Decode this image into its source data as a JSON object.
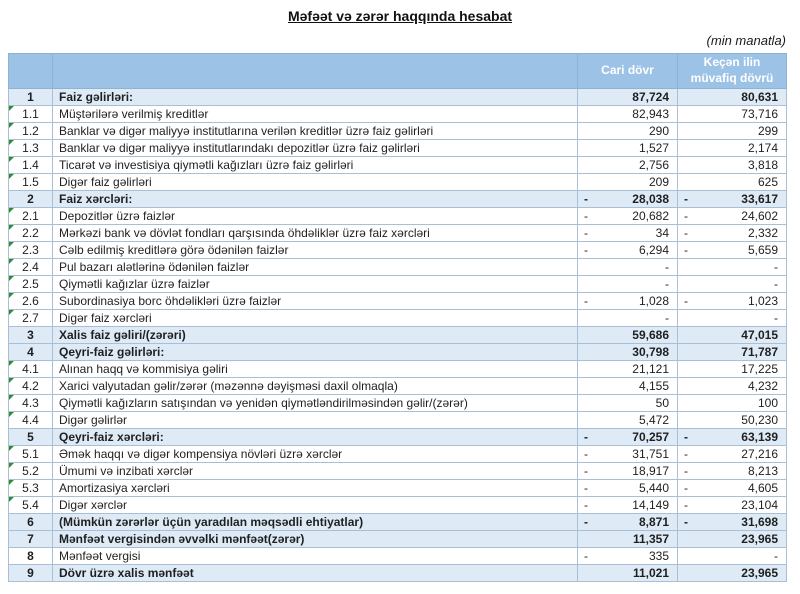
{
  "page": {
    "title": "Məfəət və zərər haqqında hesabat",
    "unit_note": "(min manatla)"
  },
  "colors": {
    "header_bg": "#9CC2E5",
    "header_text": "#FFFFFF",
    "section_row_bg": "#DEEBF7",
    "cell_border": "#AABFD4",
    "comment_marker_green": "#2F8F2F"
  },
  "table": {
    "header": {
      "num": "",
      "desc": "",
      "current": "Cari dövr",
      "previous": "Keçən ilin müvafiq dövrü"
    },
    "rows": [
      {
        "num": "1",
        "label": "Faiz gəlirləri:",
        "cs": "",
        "cur": "87,724",
        "ps": "",
        "prev": "80,631",
        "section": true,
        "marker": false
      },
      {
        "num": "1.1",
        "label": "Müştərilərə verilmiş kreditlər",
        "cs": "",
        "cur": "82,943",
        "ps": "",
        "prev": "73,716",
        "section": false,
        "marker": true
      },
      {
        "num": "1.2",
        "label": "Banklar və digər maliyyə institutlarına verilən kreditlər üzrə faiz gəlirləri",
        "cs": "",
        "cur": "290",
        "ps": "",
        "prev": "299",
        "section": false,
        "marker": true
      },
      {
        "num": "1.3",
        "label": "Banklar və digər maliyyə institutlarındakı depozitlər üzrə faiz gəlirləri",
        "cs": "",
        "cur": "1,527",
        "ps": "",
        "prev": "2,174",
        "section": false,
        "marker": true
      },
      {
        "num": "1.4",
        "label": "Ticarət və investisiya qiymətli kağızları üzrə faiz gəlirləri",
        "cs": "",
        "cur": "2,756",
        "ps": "",
        "prev": "3,818",
        "section": false,
        "marker": true
      },
      {
        "num": "1.5",
        "label": "Digər faiz gəlirləri",
        "cs": "",
        "cur": "209",
        "ps": "",
        "prev": "625",
        "section": false,
        "marker": true
      },
      {
        "num": "2",
        "label": "Faiz xərcləri:",
        "cs": "-",
        "cur": "28,038",
        "ps": "-",
        "prev": "33,617",
        "section": true,
        "marker": false
      },
      {
        "num": "2.1",
        "label": "Depozitlər üzrə faizlər",
        "cs": "-",
        "cur": "20,682",
        "ps": "-",
        "prev": "24,602",
        "section": false,
        "marker": true
      },
      {
        "num": "2.2",
        "label": "Mərkəzi bank və dövlət fondları qarşısında öhdəliklər üzrə faiz xərcləri",
        "cs": "-",
        "cur": "34",
        "ps": "-",
        "prev": "2,332",
        "section": false,
        "marker": true
      },
      {
        "num": "2.3",
        "label": "Cəlb edilmiş kreditlərə görə ödənilən faizlər",
        "cs": "-",
        "cur": "6,294",
        "ps": "-",
        "prev": "5,659",
        "section": false,
        "marker": true
      },
      {
        "num": "2.4",
        "label": "Pul bazarı alətlərinə ödənilən faizlər",
        "cs": "",
        "cur": "-",
        "ps": "",
        "prev": "-",
        "section": false,
        "marker": true
      },
      {
        "num": "2.5",
        "label": "Qiymətli kağızlar üzrə faizlər",
        "cs": "",
        "cur": "-",
        "ps": "",
        "prev": "-",
        "section": false,
        "marker": true
      },
      {
        "num": "2.6",
        "label": "Subordinasiya borc öhdəlikləri üzrə faizlər",
        "cs": "-",
        "cur": "1,028",
        "ps": "-",
        "prev": "1,023",
        "section": false,
        "marker": true
      },
      {
        "num": "2.7",
        "label": "Digər faiz xərcləri",
        "cs": "",
        "cur": "-",
        "ps": "",
        "prev": "-",
        "section": false,
        "marker": true
      },
      {
        "num": "3",
        "label": "Xalis faiz gəliri/(zərəri)",
        "cs": "",
        "cur": "59,686",
        "ps": "",
        "prev": "47,015",
        "section": true,
        "marker": false
      },
      {
        "num": "4",
        "label": "Qeyri-faiz gəlirləri:",
        "cs": "",
        "cur": "30,798",
        "ps": "",
        "prev": "71,787",
        "section": true,
        "marker": false
      },
      {
        "num": "4.1",
        "label": "Alınan haqq və kommisiya gəliri",
        "cs": "",
        "cur": "21,121",
        "ps": "",
        "prev": "17,225",
        "section": false,
        "marker": true
      },
      {
        "num": "4.2",
        "label": "Xarici valyutadan gəlir/zərər (məzənnə dəyişməsi daxil olmaqla)",
        "cs": "",
        "cur": "4,155",
        "ps": "",
        "prev": "4,232",
        "section": false,
        "marker": true
      },
      {
        "num": "4.3",
        "label": "Qiymətli kağızların satışından və yenidən qiymətləndirilməsindən gəlir/(zərər)",
        "cs": "",
        "cur": "50",
        "ps": "",
        "prev": "100",
        "section": false,
        "marker": true
      },
      {
        "num": "4.4",
        "label": "Digər gəlirlər",
        "cs": "",
        "cur": "5,472",
        "ps": "",
        "prev": "50,230",
        "section": false,
        "marker": true
      },
      {
        "num": "5",
        "label": "Qeyri-faiz xərcləri:",
        "cs": "-",
        "cur": "70,257",
        "ps": "-",
        "prev": "63,139",
        "section": true,
        "marker": false
      },
      {
        "num": "5.1",
        "label": "Əmək haqqı və digər kompensiya növləri üzrə xərclər",
        "cs": "-",
        "cur": "31,751",
        "ps": "-",
        "prev": "27,216",
        "section": false,
        "marker": true
      },
      {
        "num": "5.2",
        "label": "Ümumi və inzibati xərclər",
        "cs": "-",
        "cur": "18,917",
        "ps": "-",
        "prev": "8,213",
        "section": false,
        "marker": true
      },
      {
        "num": "5.3",
        "label": "Amortizasiya xərcləri",
        "cs": "-",
        "cur": "5,440",
        "ps": "-",
        "prev": "4,605",
        "section": false,
        "marker": true
      },
      {
        "num": "5.4",
        "label": "Digər xərclər",
        "cs": "-",
        "cur": "14,149",
        "ps": "-",
        "prev": "23,104",
        "section": false,
        "marker": true
      },
      {
        "num": "6",
        "label": "(Mümkün zərərlər üçün yaradılan məqsədli ehtiyatlar)",
        "cs": "-",
        "cur": "8,871",
        "ps": "-",
        "prev": "31,698",
        "section": true,
        "marker": false
      },
      {
        "num": "7",
        "label": "Mənfəət vergisindən əvvəlki mənfəət(zərər)",
        "cs": "",
        "cur": "11,357",
        "ps": "",
        "prev": "23,965",
        "section": true,
        "marker": false
      },
      {
        "num": "8",
        "label": "Mənfəət vergisi",
        "cs": "-",
        "cur": "335",
        "ps": "",
        "prev": "-",
        "section": false,
        "marker": false
      },
      {
        "num": "9",
        "label": "Dövr üzrə xalis mənfəət",
        "cs": "",
        "cur": "11,021",
        "ps": "",
        "prev": "23,965",
        "section": true,
        "marker": false
      }
    ]
  }
}
